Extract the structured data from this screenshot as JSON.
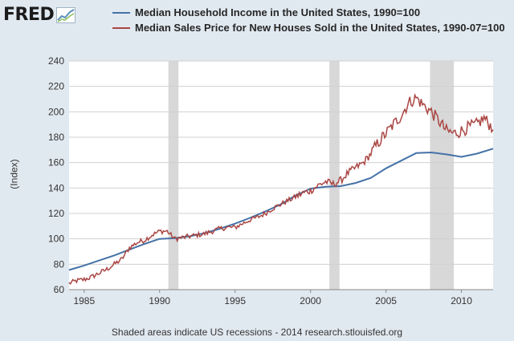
{
  "logo": {
    "text": "FRED"
  },
  "source_note": "Shaded areas indicate US recessions - 2014 research.stlouisfed.org",
  "colors": {
    "income": "#4572a7",
    "sales": "#aa4643",
    "recession": "#d8d8d8",
    "plot_bg": "#ffffff",
    "page_bg": "#e1e9f0"
  },
  "chart_data": {
    "type": "line",
    "title": "",
    "xlabel": "",
    "ylabel": "(Index)",
    "xlim": [
      1984,
      2012.1
    ],
    "ylim": [
      60,
      240
    ],
    "yticks": [
      "60",
      "80",
      "100",
      "120",
      "140",
      "160",
      "180",
      "200",
      "220",
      "240"
    ],
    "xticks": [
      "1985",
      "1990",
      "1995",
      "2000",
      "2005",
      "2010"
    ],
    "grid": true,
    "legend_position": "top",
    "recessions": [
      [
        1990.58,
        1991.25
      ],
      [
        2001.25,
        2001.92
      ],
      [
        2007.92,
        2009.5
      ]
    ],
    "series": [
      {
        "name": "Median Household Income in the United States, 1990=100",
        "color": "#4572a7",
        "points": [
          [
            1984,
            75.5
          ],
          [
            1985,
            79
          ],
          [
            1986,
            83
          ],
          [
            1987,
            87
          ],
          [
            1988,
            91.5
          ],
          [
            1989,
            96
          ],
          [
            1990,
            100
          ],
          [
            1991,
            100.5
          ],
          [
            1992,
            102
          ],
          [
            1993,
            104.5
          ],
          [
            1994,
            108
          ],
          [
            1995,
            112
          ],
          [
            1996,
            116.5
          ],
          [
            1997,
            121.5
          ],
          [
            1998,
            127
          ],
          [
            1999,
            134
          ],
          [
            2000,
            139.5
          ],
          [
            2001,
            141
          ],
          [
            2002,
            141.5
          ],
          [
            2003,
            144
          ],
          [
            2004,
            148
          ],
          [
            2005,
            155.5
          ],
          [
            2006,
            161.5
          ],
          [
            2007,
            167.5
          ],
          [
            2008,
            168
          ],
          [
            2009,
            166.5
          ],
          [
            2010,
            164.5
          ],
          [
            2011,
            167
          ],
          [
            2012.1,
            171
          ]
        ]
      },
      {
        "name": "Median Sales Price for New Houses Sold in the United States, 1990-07=100",
        "color": "#aa4643",
        "points": [
          [
            1984,
            65
          ],
          [
            1984.5,
            67
          ],
          [
            1985,
            68
          ],
          [
            1985.5,
            70
          ],
          [
            1986,
            73
          ],
          [
            1986.5,
            76
          ],
          [
            1987,
            80
          ],
          [
            1987.5,
            84
          ],
          [
            1988,
            93
          ],
          [
            1988.5,
            97
          ],
          [
            1989,
            99
          ],
          [
            1989.5,
            103
          ],
          [
            1990,
            106
          ],
          [
            1990.5,
            106
          ],
          [
            1991,
            100
          ],
          [
            1991.5,
            101
          ],
          [
            1992,
            102
          ],
          [
            1992.5,
            103
          ],
          [
            1993,
            104
          ],
          [
            1993.5,
            106
          ],
          [
            1994,
            108
          ],
          [
            1994.5,
            109
          ],
          [
            1995,
            109
          ],
          [
            1995.5,
            112
          ],
          [
            1996,
            115
          ],
          [
            1996.5,
            117
          ],
          [
            1997,
            120
          ],
          [
            1997.5,
            124
          ],
          [
            1998,
            127
          ],
          [
            1998.5,
            130
          ],
          [
            1999,
            133
          ],
          [
            1999.5,
            136
          ],
          [
            2000,
            138
          ],
          [
            2000.5,
            142
          ],
          [
            2001,
            145
          ],
          [
            2001.5,
            143
          ],
          [
            2002,
            146
          ],
          [
            2002.5,
            152
          ],
          [
            2003,
            156
          ],
          [
            2003.5,
            160
          ],
          [
            2004,
            167
          ],
          [
            2004.5,
            176
          ],
          [
            2005,
            183
          ],
          [
            2005.5,
            190
          ],
          [
            2006,
            197
          ],
          [
            2006.5,
            207
          ],
          [
            2007,
            211
          ],
          [
            2007.5,
            205
          ],
          [
            2008,
            200
          ],
          [
            2008.5,
            193
          ],
          [
            2009,
            185
          ],
          [
            2009.5,
            183
          ],
          [
            2010,
            185
          ],
          [
            2010.5,
            188
          ],
          [
            2011,
            190
          ],
          [
            2011.5,
            195
          ],
          [
            2012,
            188
          ],
          [
            2012.1,
            186
          ]
        ]
      }
    ]
  }
}
